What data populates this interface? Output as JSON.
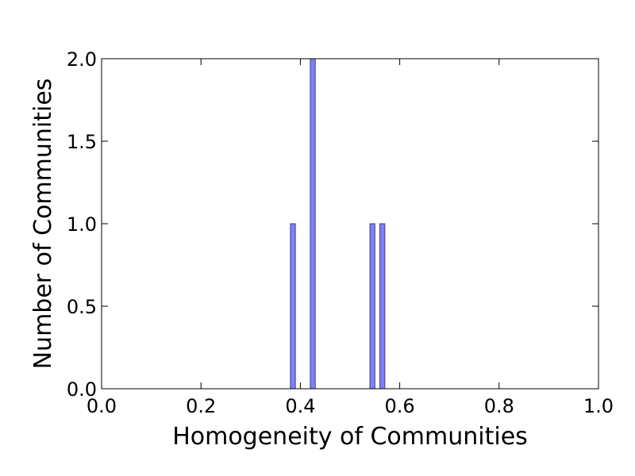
{
  "chart_data": {
    "type": "bar",
    "title": "",
    "xlabel": "Homogeneity of Communities",
    "ylabel": "Number of Communities",
    "xlim": [
      0.0,
      1.0
    ],
    "ylim": [
      0.0,
      2.0
    ],
    "xticks": [
      "0.0",
      "0.2",
      "0.4",
      "0.6",
      "0.8",
      "1.0"
    ],
    "yticks": [
      "0.0",
      "0.5",
      "1.0",
      "1.5",
      "2.0"
    ],
    "bar_color": "#7f7fff",
    "bar_edge_color": "#3f3f7f",
    "bars": [
      {
        "x0": 0.38,
        "x1": 0.39,
        "value": 1
      },
      {
        "x0": 0.42,
        "x1": 0.43,
        "value": 2
      },
      {
        "x0": 0.54,
        "x1": 0.55,
        "value": 1
      },
      {
        "x0": 0.56,
        "x1": 0.57,
        "value": 1
      }
    ]
  }
}
